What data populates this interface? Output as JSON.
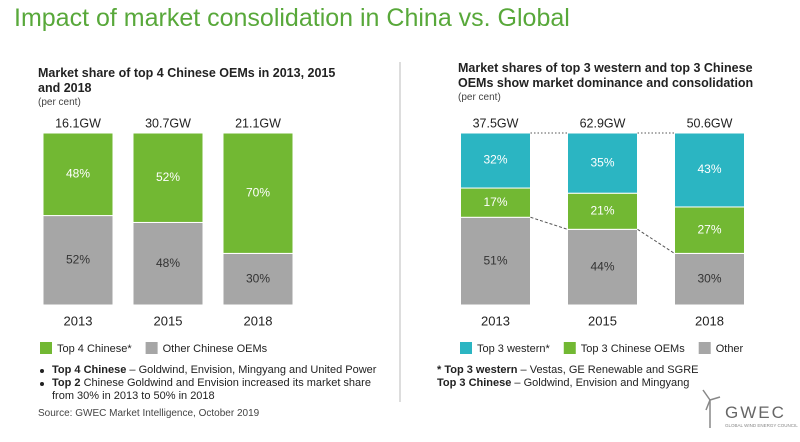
{
  "title": "Impact of market consolidation in China vs. Global",
  "chart_data": [
    {
      "type": "stacked_bar",
      "title": "Market share of top 4 Chinese OEMs in 2013, 2015 and 2018",
      "subtitle": "(per cent)",
      "categories": [
        "2013",
        "2015",
        "2018"
      ],
      "annotations": [
        "16.1GW",
        "30.7GW",
        "21.1GW"
      ],
      "ylim": [
        0,
        100
      ],
      "series": [
        {
          "name": "Other Chinese OEMs",
          "color": "#a6a6a6",
          "values": [
            52,
            48,
            30
          ],
          "value_labels": [
            "52%",
            "48%",
            "30%"
          ]
        },
        {
          "name": "Top 4 Chinese*",
          "color": "#72b833",
          "values": [
            48,
            52,
            70
          ],
          "value_labels": [
            "48%",
            "52%",
            "70%"
          ]
        }
      ],
      "notes": [
        {
          "bold": "Top 4 Chinese",
          "text": " – Goldwind, Envision, Mingyang and United Power"
        },
        {
          "bold": "Top 2",
          "text": " Chinese Goldwind and Envision increased its market share from 30% in 2013 to 50% in 2018"
        }
      ]
    },
    {
      "type": "stacked_bar",
      "title": "Market shares of top 3 western and top 3 Chinese OEMs show market dominance and consolidation",
      "subtitle": "(per cent)",
      "categories": [
        "2013",
        "2015",
        "2018"
      ],
      "annotations": [
        "37.5GW",
        "62.9GW",
        "50.6GW"
      ],
      "ylim": [
        0,
        100
      ],
      "series": [
        {
          "name": "Other",
          "color": "#a6a6a6",
          "values": [
            51,
            44,
            30
          ],
          "value_labels": [
            "51%",
            "44%",
            "30%"
          ]
        },
        {
          "name": "Top 3 Chinese OEMs",
          "color": "#72b833",
          "values": [
            17,
            21,
            27
          ],
          "value_labels": [
            "17%",
            "21%",
            "27%"
          ]
        },
        {
          "name": "Top 3 western*",
          "color": "#2bb5c2",
          "values": [
            32,
            35,
            43
          ],
          "value_labels": [
            "32%",
            "35%",
            "43%"
          ]
        }
      ],
      "notes": [
        {
          "bold": "* Top 3 western",
          "text": " – Vestas, GE Renewable and SGRE"
        },
        {
          "bold": "Top 3 Chinese",
          "text": " – Goldwind, Envision and Mingyang"
        }
      ]
    }
  ],
  "source": "Source: GWEC Market Intelligence, October 2019",
  "logo": {
    "name": "GWEC",
    "tagline": "GLOBAL WIND ENERGY COUNCIL"
  }
}
